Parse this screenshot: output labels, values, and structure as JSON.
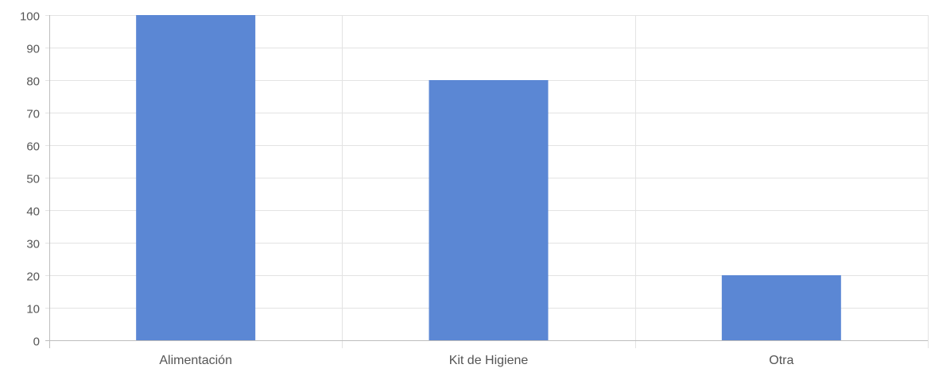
{
  "chart_data": {
    "type": "bar",
    "categories": [
      "Alimentación",
      "Kit de Higiene",
      "Otra"
    ],
    "values": [
      100,
      80,
      20
    ],
    "ylim": [
      0,
      100
    ],
    "yticks": [
      0,
      10,
      20,
      30,
      40,
      50,
      60,
      70,
      80,
      90,
      100
    ],
    "grid": true,
    "legend": "none",
    "bar_color": "#5b87d4",
    "grid_color": "#e3e3e3",
    "axis_color": "#bdbdbd",
    "tick_label_color": "#555555"
  }
}
